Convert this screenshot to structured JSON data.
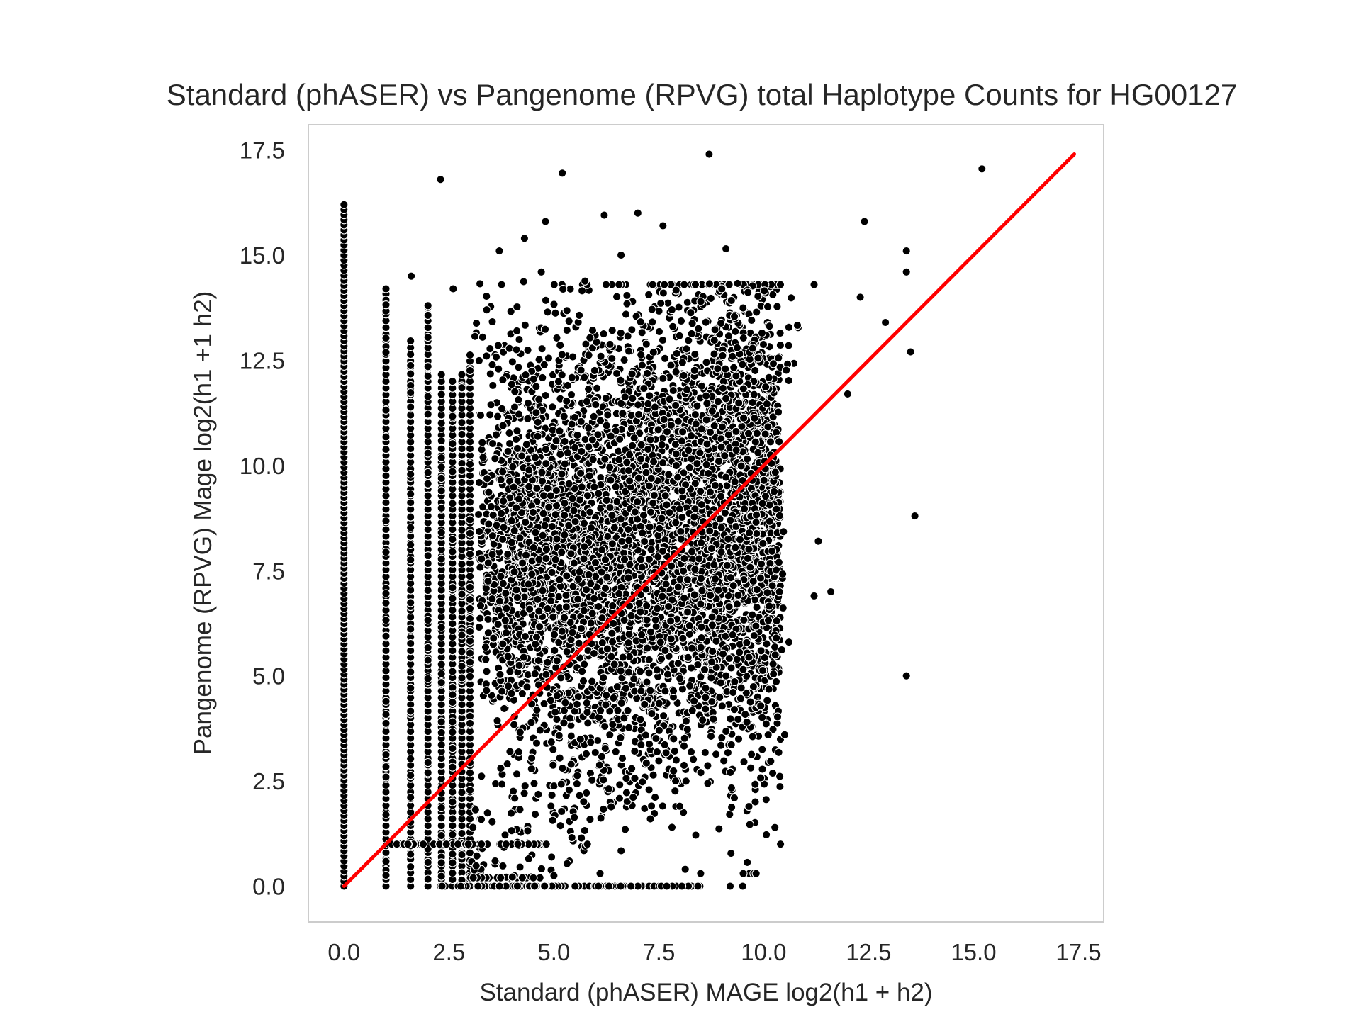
{
  "chart_data": {
    "type": "scatter",
    "title": "Standard (phASER) vs Pangenome (RPVG) total Haplotype Counts for HG00127",
    "xlabel": "Standard (phASER) MAGE log2(h1 + h2)",
    "ylabel": "Pangenome (RPVG) Mage log2(h1 +1 h2)",
    "xlim": [
      -0.85,
      18.1
    ],
    "ylim": [
      -0.85,
      18.1
    ],
    "x_ticks": [
      "0.0",
      "2.5",
      "5.0",
      "7.5",
      "10.0",
      "12.5",
      "15.0",
      "17.5"
    ],
    "y_ticks": [
      "0.0",
      "2.5",
      "5.0",
      "7.5",
      "10.0",
      "12.5",
      "15.0",
      "17.5"
    ],
    "grid": false,
    "colors": {
      "points": "#000000",
      "point_edge": "#ffffff",
      "reference_line": "#ff0000",
      "frame": "#cccccc"
    },
    "reference_line": {
      "x": [
        0,
        17.4
      ],
      "y": [
        0,
        17.4
      ]
    },
    "series": [
      {
        "points_notable": [
          [
            8.7,
            17.4
          ],
          [
            2.3,
            16.8
          ],
          [
            5.2,
            16.95
          ],
          [
            15.2,
            17.05
          ],
          [
            12.4,
            15.8
          ],
          [
            13.4,
            15.1
          ],
          [
            13.4,
            14.6
          ],
          [
            13.5,
            12.7
          ],
          [
            13.6,
            8.8
          ],
          [
            13.4,
            5.0
          ],
          [
            12.9,
            13.4
          ],
          [
            12.3,
            14.0
          ],
          [
            11.2,
            14.3
          ],
          [
            11.3,
            8.2
          ],
          [
            11.2,
            6.9
          ],
          [
            11.6,
            7.0
          ],
          [
            12.0,
            11.7
          ],
          [
            10.4,
            1.0
          ],
          [
            10.5,
            3.6
          ],
          [
            9.3,
            2.1
          ],
          [
            9.1,
            15.15
          ],
          [
            9.0,
            14.2
          ],
          [
            7.0,
            16.0
          ],
          [
            6.2,
            15.95
          ],
          [
            4.8,
            15.8
          ],
          [
            4.3,
            15.4
          ],
          [
            3.7,
            15.1
          ],
          [
            4.7,
            14.6
          ],
          [
            6.6,
            15.0
          ],
          [
            7.6,
            15.7
          ],
          [
            9.1,
            5.0
          ],
          [
            9.6,
            3.9
          ],
          [
            9.3,
            4.2
          ],
          [
            10.3,
            5.9
          ],
          [
            10.6,
            5.8
          ],
          [
            2.0,
            13.8
          ],
          [
            1.6,
            14.5
          ],
          [
            1.0,
            14.2
          ],
          [
            2.6,
            14.2
          ],
          [
            3.4,
            13.7
          ],
          [
            9.5,
            0.0
          ],
          [
            9.2,
            0.0
          ],
          [
            3.6,
            0.6
          ],
          [
            4.4,
            0.65
          ],
          [
            5.8,
            1.0
          ],
          [
            6.7,
            1.35
          ],
          [
            7.3,
            1.6
          ],
          [
            8.0,
            1.9
          ],
          [
            8.5,
            2.7
          ],
          [
            7.9,
            2.5
          ]
        ]
      }
    ]
  }
}
